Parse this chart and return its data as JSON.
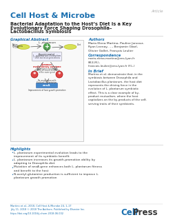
{
  "background_color": "#ffffff",
  "journal_name": "Cell Host & Microbe",
  "journal_color": "#1a6faf",
  "article_tag": "Article",
  "article_tag_color": "#aaaaaa",
  "title_line1": "Bacterial Adaptation to the Host’s Diet Is a Key",
  "title_line2": "Evolutionary Force Shaping Drosophila–",
  "title_line3": "Lactobacillus Symbiosis",
  "title_color": "#222222",
  "section_graphical_abstract": "Graphical Abstract",
  "section_authors": "Authors",
  "authors_text": "Maria Elena Martino, Pauline Joncour,\nRyan Leenay, ..., Benjamin Glael,\nOlivier Gallet, François Leulier",
  "correspondence_label": "Correspondence",
  "correspondence_text": "maria-elena.martino@ens-lyon.fr\n(M.E.M.),\nfrancois.leulier@ens-lyon.fr (F.L.)",
  "inbrief_label": "In Brief",
  "inbrief_text": "Martino et al. demonstrate that, in the\nsymbiosis between Drosophila and\nLactobacillus plantarum, the host diet\nrepresents the driving force in the\nevolution of L. plantarum symbiotic\neffect. This is a clear example of by-\nproduct mutualism, where the host\ncapitalizes on the by-products of the self-\nserving traits of their symbionts.",
  "highlights_label": "Highlights",
  "highlight1": "L. plantarum experimental evolution leads to the\nimprovement of its symbiotic benefit",
  "highlight2": "L. plantarum increases its growth-promotion ability by\nadapting to Drosophila diet",
  "highlight3": "Mutation of ansA gene enhances both L. plantarum fitness\nand benefit to the host",
  "highlight4": "N-acetyl-glutamine production is sufficient to improve L.\nplantarum growth promotion",
  "footer_citation": "Martino et al., 2018, Cell Host & Microbe 24, 1–17\nJuly 11, 2018 © 2018 The Authors. Published by Elsevier Inc.\nhttps://doi.org/10.1016/j.chom.2018.06.002",
  "footer_color": "#1a6faf",
  "cellpress_cell_color": "#1a6faf",
  "cellpress_press_color": "#333333",
  "section_label_color": "#1a6faf",
  "highlight_bullet_color": "#1a6faf",
  "sep_color": "#cccccc"
}
